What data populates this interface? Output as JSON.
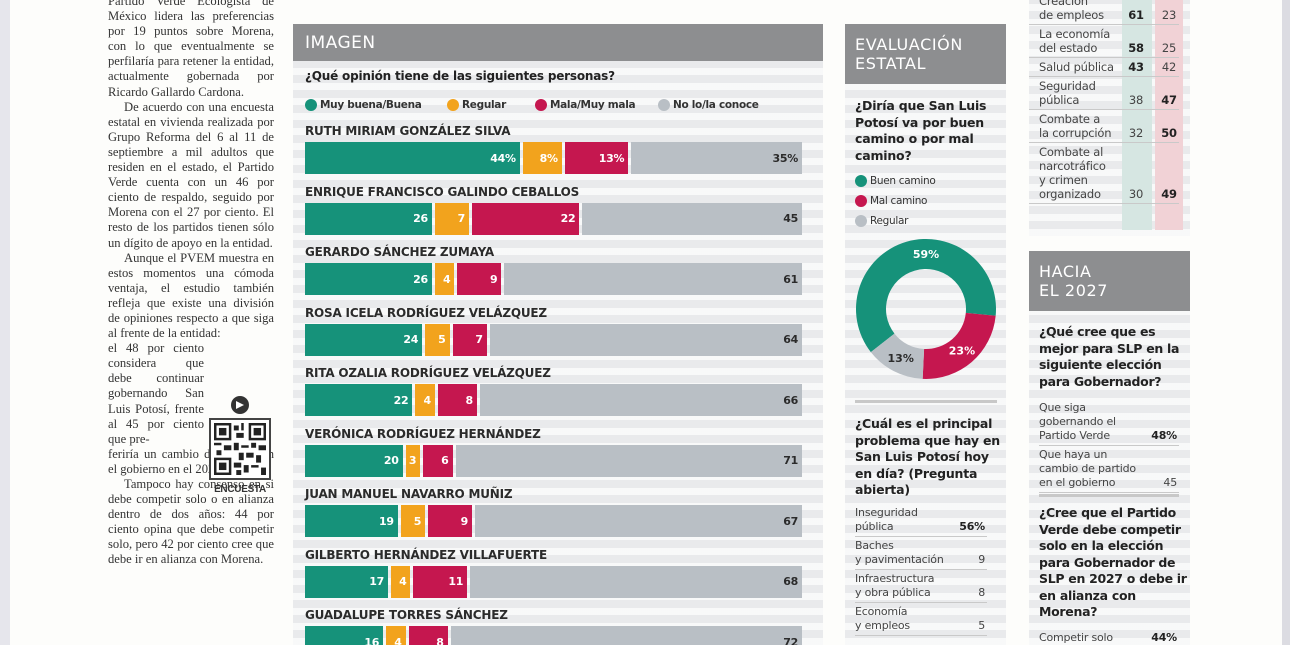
{
  "article": {
    "paragraphs": [
      "Partido Verde Ecologista de México lidera las preferencias por 19 puntos sobre Morena, con lo que eventualmente se perfilaría para retener la entidad, actualmente gobernada por Ricardo Gallardo Cardona.",
      "De acuerdo con una encuesta estatal en vivienda realizada por Grupo Reforma del 6 al 11 de septiembre a mil adultos que residen en el estado, el Partido Verde cuenta con un 46 por ciento de respaldo, seguido por Morena con el 27 por ciento. El resto de los partidos tienen sólo un dígito de apoyo en la entidad.",
      "Aunque el PVEM muestra en estos momentos una cómoda ventaja, el estudio también refleja que existe una división de opiniones respecto a que siga al frente de la entidad:"
    ],
    "narrow_text": "el 48 por ciento considera que debe continuar gobernando San Luis Potosí, frente al 45 por ciento que pre-",
    "after_narrow": "feriría un cambio de partido en el gobierno en el 2027.",
    "last_paragraph": "Tampoco hay consenso en si debe competir solo o en alianza dentro de dos años: 44 por ciento opina que debe competir solo, pero 42 por ciento cree que debe ir en alianza con Morena.",
    "qr_label": "ENCUESTA",
    "qr_icon": "play-badge-icon"
  },
  "imagen": {
    "header": "IMAGEN",
    "question": "¿Qué opinión tiene de las siguientes personas?"
  },
  "evaluacion": {
    "header_line1": "EVALUACIÓN",
    "header_line2": "ESTATAL",
    "question": "¿Diría que San Luis Potosí va por buen camino o por mal camino?",
    "legend": [
      "Buen camino",
      "Mal camino",
      "Regular"
    ],
    "problem_question": "¿Cuál es el principal problema que hay en San Luis Potosí hoy en día? (Pregunta abierta)",
    "problems": [
      {
        "line1": "Inseguridad",
        "line2": "pública",
        "value": "56%",
        "bold": true
      },
      {
        "line1": "Baches",
        "line2": "y pavimentación",
        "value": "9",
        "bold": false
      },
      {
        "line1": "Infraestructura",
        "line2": "y obra pública",
        "value": "8",
        "bold": false
      },
      {
        "line1": "Economía",
        "line2": "y empleos",
        "value": "5",
        "bold": false
      }
    ]
  },
  "ratings": {
    "rows": [
      {
        "line1": "Creación",
        "line2": "de empleos",
        "a": "61",
        "b": "23",
        "bold": "a"
      },
      {
        "line1": "La economía",
        "line2": "del estado",
        "a": "58",
        "b": "25",
        "bold": "a"
      },
      {
        "line1": "Salud pública",
        "line2": "",
        "a": "43",
        "b": "42",
        "bold": "a"
      },
      {
        "line1": "Seguridad",
        "line2": "pública",
        "a": "38",
        "b": "47",
        "bold": "b"
      },
      {
        "line1": "Combate a",
        "line2": "la corrupción",
        "a": "32",
        "b": "50",
        "bold": "b"
      },
      {
        "line1": "Combate al",
        "line2": "narcotráfico",
        "line3": "y crimen",
        "line4": "organizado",
        "a": "30",
        "b": "49",
        "bold": "b"
      }
    ]
  },
  "hacia": {
    "header_line1": "HACIA",
    "header_line2": "EL 2027",
    "q1": "¿Qué cree que es mejor para SLP en la siguiente elección para Gobernador?",
    "q1_options": [
      {
        "label": "Que siga gobernando el Partido Verde",
        "value": "48%"
      },
      {
        "label": "Que haya un cambio de partido en el gobierno",
        "value": "45"
      }
    ],
    "q2": "¿Cree que el Partido Verde debe competir solo en la elección para Gobernador de SLP en 2027 o debe ir en alianza con Morena?",
    "q2_options": [
      {
        "label": "Competir solo",
        "value": "44%"
      }
    ]
  },
  "colors": {
    "good": "#16927a",
    "regular": "#f2a31d",
    "bad": "#c5174f",
    "unknown": "#b9bfc5",
    "header_gray": "#8d8e90"
  },
  "chart_data": [
    {
      "type": "bar",
      "orientation": "horizontal-stacked-100",
      "title": "¿Qué opinión tiene de las siguientes personas?",
      "legend": [
        "Muy buena/Buena",
        "Regular",
        "Mala/Muy mala",
        "No lo/la conoce"
      ],
      "legend_position": "top",
      "unit": "%",
      "categories": [
        "RUTH MIRIAM GONZÁLEZ SILVA",
        "ENRIQUE FRANCISCO GALINDO CEBALLOS",
        "GERARDO SÁNCHEZ ZUMAYA",
        "ROSA ICELA RODRÍGUEZ VELÁZQUEZ",
        "RITA OZALIA RODRÍGUEZ VELÁZQUEZ",
        "VERÓNICA RODRÍGUEZ HERNÁNDEZ",
        "JUAN MANUEL NAVARRO MUÑIZ",
        "GILBERTO HERNÁNDEZ VILLAFUERTE",
        "GUADALUPE TORRES SÁNCHEZ"
      ],
      "series": [
        {
          "name": "Muy buena/Buena",
          "values": [
            44,
            26,
            26,
            24,
            22,
            20,
            19,
            17,
            16
          ]
        },
        {
          "name": "Regular",
          "values": [
            8,
            7,
            4,
            5,
            4,
            3,
            5,
            4,
            4
          ]
        },
        {
          "name": "Mala/Muy mala",
          "values": [
            13,
            22,
            9,
            7,
            8,
            6,
            9,
            11,
            8
          ]
        },
        {
          "name": "No lo/la conoce",
          "values": [
            35,
            45,
            61,
            64,
            66,
            71,
            67,
            68,
            72
          ]
        }
      ],
      "first_row_labels_have_percent": true
    },
    {
      "type": "pie",
      "variant": "donut",
      "title": "¿Diría que San Luis Potosí va por buen camino o por mal camino?",
      "labels": [
        "Buen camino",
        "Mal camino",
        "Regular"
      ],
      "values": [
        59,
        23,
        13
      ],
      "unit": "%"
    }
  ]
}
